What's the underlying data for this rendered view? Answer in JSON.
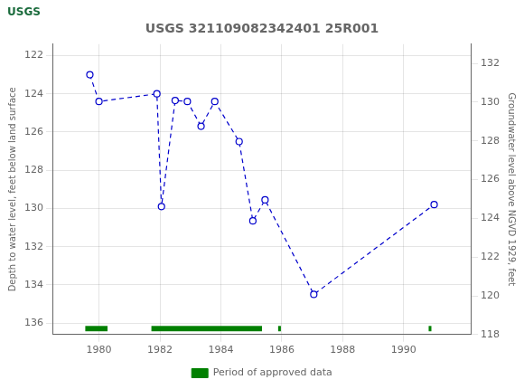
{
  "chart_data": {
    "type": "line",
    "title": "USGS 321109082342401 25R001",
    "annotations": [
      {
        "text": "USGS"
      }
    ],
    "x_label": "",
    "y_label": "Depth to water level, feet below land surface",
    "y2_label": "Groundwater level above NGVD 1929, feet",
    "x": [
      1979.7,
      1980.0,
      1981.9,
      1982.05,
      1982.5,
      1982.9,
      1983.35,
      1983.8,
      1984.6,
      1985.05,
      1985.45,
      1987.05,
      1991.0
    ],
    "series": [
      {
        "values": [
          123.0,
          124.4,
          124.0,
          129.9,
          124.35,
          124.4,
          125.7,
          124.4,
          126.5,
          130.65,
          129.55,
          134.5,
          129.8
        ],
        "color": "#0000cc",
        "line_style": "dashed",
        "marker": "open_circle"
      }
    ],
    "periods": {
      "name": "Period of approved data",
      "color": "#008000",
      "ranges": [
        [
          1979.55,
          1980.28
        ],
        [
          1981.72,
          1985.35
        ],
        [
          1985.88,
          1985.97
        ],
        [
          1990.82,
          1990.91
        ]
      ],
      "y": 136.15,
      "height": 0.28
    },
    "xlim": [
      1978.5,
      1992.2
    ],
    "xticks": [
      1980,
      1982,
      1984,
      1986,
      1988,
      1990
    ],
    "ylim": [
      136.6,
      121.4
    ],
    "yticks": [
      122,
      124,
      126,
      128,
      130,
      132,
      134,
      136
    ],
    "y2lim": [
      118,
      133
    ],
    "y2ticks": [
      132,
      130,
      128,
      126,
      124,
      122,
      120,
      118
    ],
    "grid": true,
    "legend": "bottom"
  }
}
